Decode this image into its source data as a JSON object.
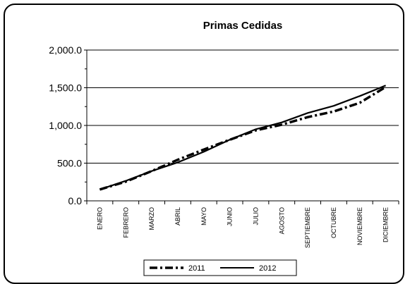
{
  "chart_data": {
    "type": "line",
    "title": "Primas Cedidas",
    "categories": [
      "ENERO",
      "FEBRERO",
      "MARZO",
      "ABRIL",
      "MAYO",
      "JUNIO",
      "JULIO",
      "AGOSTO",
      "SEPTIEMBRE",
      "OCTUBRE",
      "NOVIEMBRE",
      "DICIEMBRE"
    ],
    "series": [
      {
        "name": "2011",
        "style": "dash-dot",
        "color": "#000000",
        "values": [
          150,
          255,
          395,
          545,
          680,
          810,
          935,
          1010,
          1110,
          1185,
          1300,
          1510
        ]
      },
      {
        "name": "2012",
        "style": "solid",
        "color": "#000000",
        "values": [
          150,
          265,
          395,
          510,
          650,
          810,
          950,
          1040,
          1165,
          1260,
          1390,
          1530
        ]
      }
    ],
    "ylim": [
      0,
      2000
    ],
    "yticks": [
      "0.0",
      "500.0",
      "1,000.0",
      "1,500.0",
      "2,000.0"
    ],
    "ytick_values": [
      0,
      500,
      1000,
      1500,
      2000
    ],
    "grid": true,
    "legend_position": "bottom"
  }
}
